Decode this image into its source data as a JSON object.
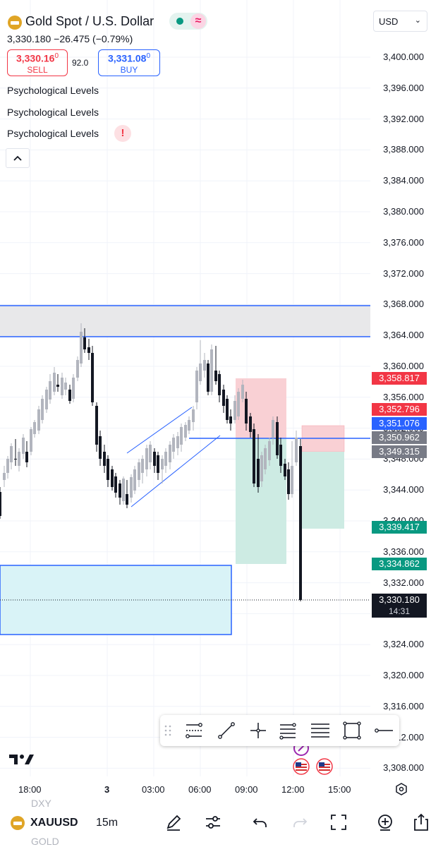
{
  "header": {
    "title": "Gold Spot / U.S. Dollar",
    "price_line": "3,330.180  −26.475 (−0.79%)",
    "sell_price": "3,330.16",
    "sell_price_sup": "0",
    "sell_label": "SELL",
    "spread": "92.0",
    "buy_price": "3,331.08",
    "buy_price_sup": "0",
    "buy_label": "BUY",
    "currency": "USD"
  },
  "indicators": [
    {
      "label": "Psychological Levels"
    },
    {
      "label": "Psychological Levels"
    },
    {
      "label": "Psychological Levels"
    }
  ],
  "warning_symbol": "!",
  "price_axis": [
    "3,400.000",
    "3,396.000",
    "3,392.000",
    "3,388.000",
    "3,384.000",
    "3,380.000",
    "3,376.000",
    "3,372.000",
    "3,368.000",
    "3,364.000",
    "3,360.000",
    "3,356.000",
    "3,352.000",
    "3,348.000",
    "3,344.000",
    "3,340.000",
    "3,336.000",
    "3,332.000",
    "3,328.000",
    "3,324.000",
    "3,320.000",
    "3,316.000",
    "3,312.000",
    "3,308.000"
  ],
  "price_tags": [
    {
      "text": "3,358.817",
      "color": "#f23645"
    },
    {
      "text": "3,352.796",
      "color": "#f23645"
    },
    {
      "text": "3,351.076",
      "color": "#2962ff"
    },
    {
      "text": "3,350.962",
      "color": "#787b86"
    },
    {
      "text": "3,349.315",
      "color": "#787b86"
    },
    {
      "text": "3,339.417",
      "color": "#089981"
    },
    {
      "text": "3,334.862",
      "color": "#089981"
    }
  ],
  "last_price": {
    "price": "3,330.180",
    "countdown": "14:31"
  },
  "time_axis": [
    "18:00",
    "3",
    "03:00",
    "06:00",
    "09:00",
    "12:00",
    "15:00"
  ],
  "drawing_toolbar": [
    "trend-line-tool-icon",
    "line-icon",
    "crosshair-icon",
    "fib-retracement-icon",
    "parallel-lines-icon",
    "rectangle-icon",
    "horizontal-ray-icon"
  ],
  "bottom": {
    "ghost_top": "DXY",
    "symbol": "XAUUSD",
    "ghost_bottom": "GOLD",
    "interval": "15m"
  },
  "colors": {
    "bull": "#b2b5be",
    "bear": "#131722",
    "accent": "#2962ff",
    "sell": "#f23645",
    "buy": "#089981"
  }
}
